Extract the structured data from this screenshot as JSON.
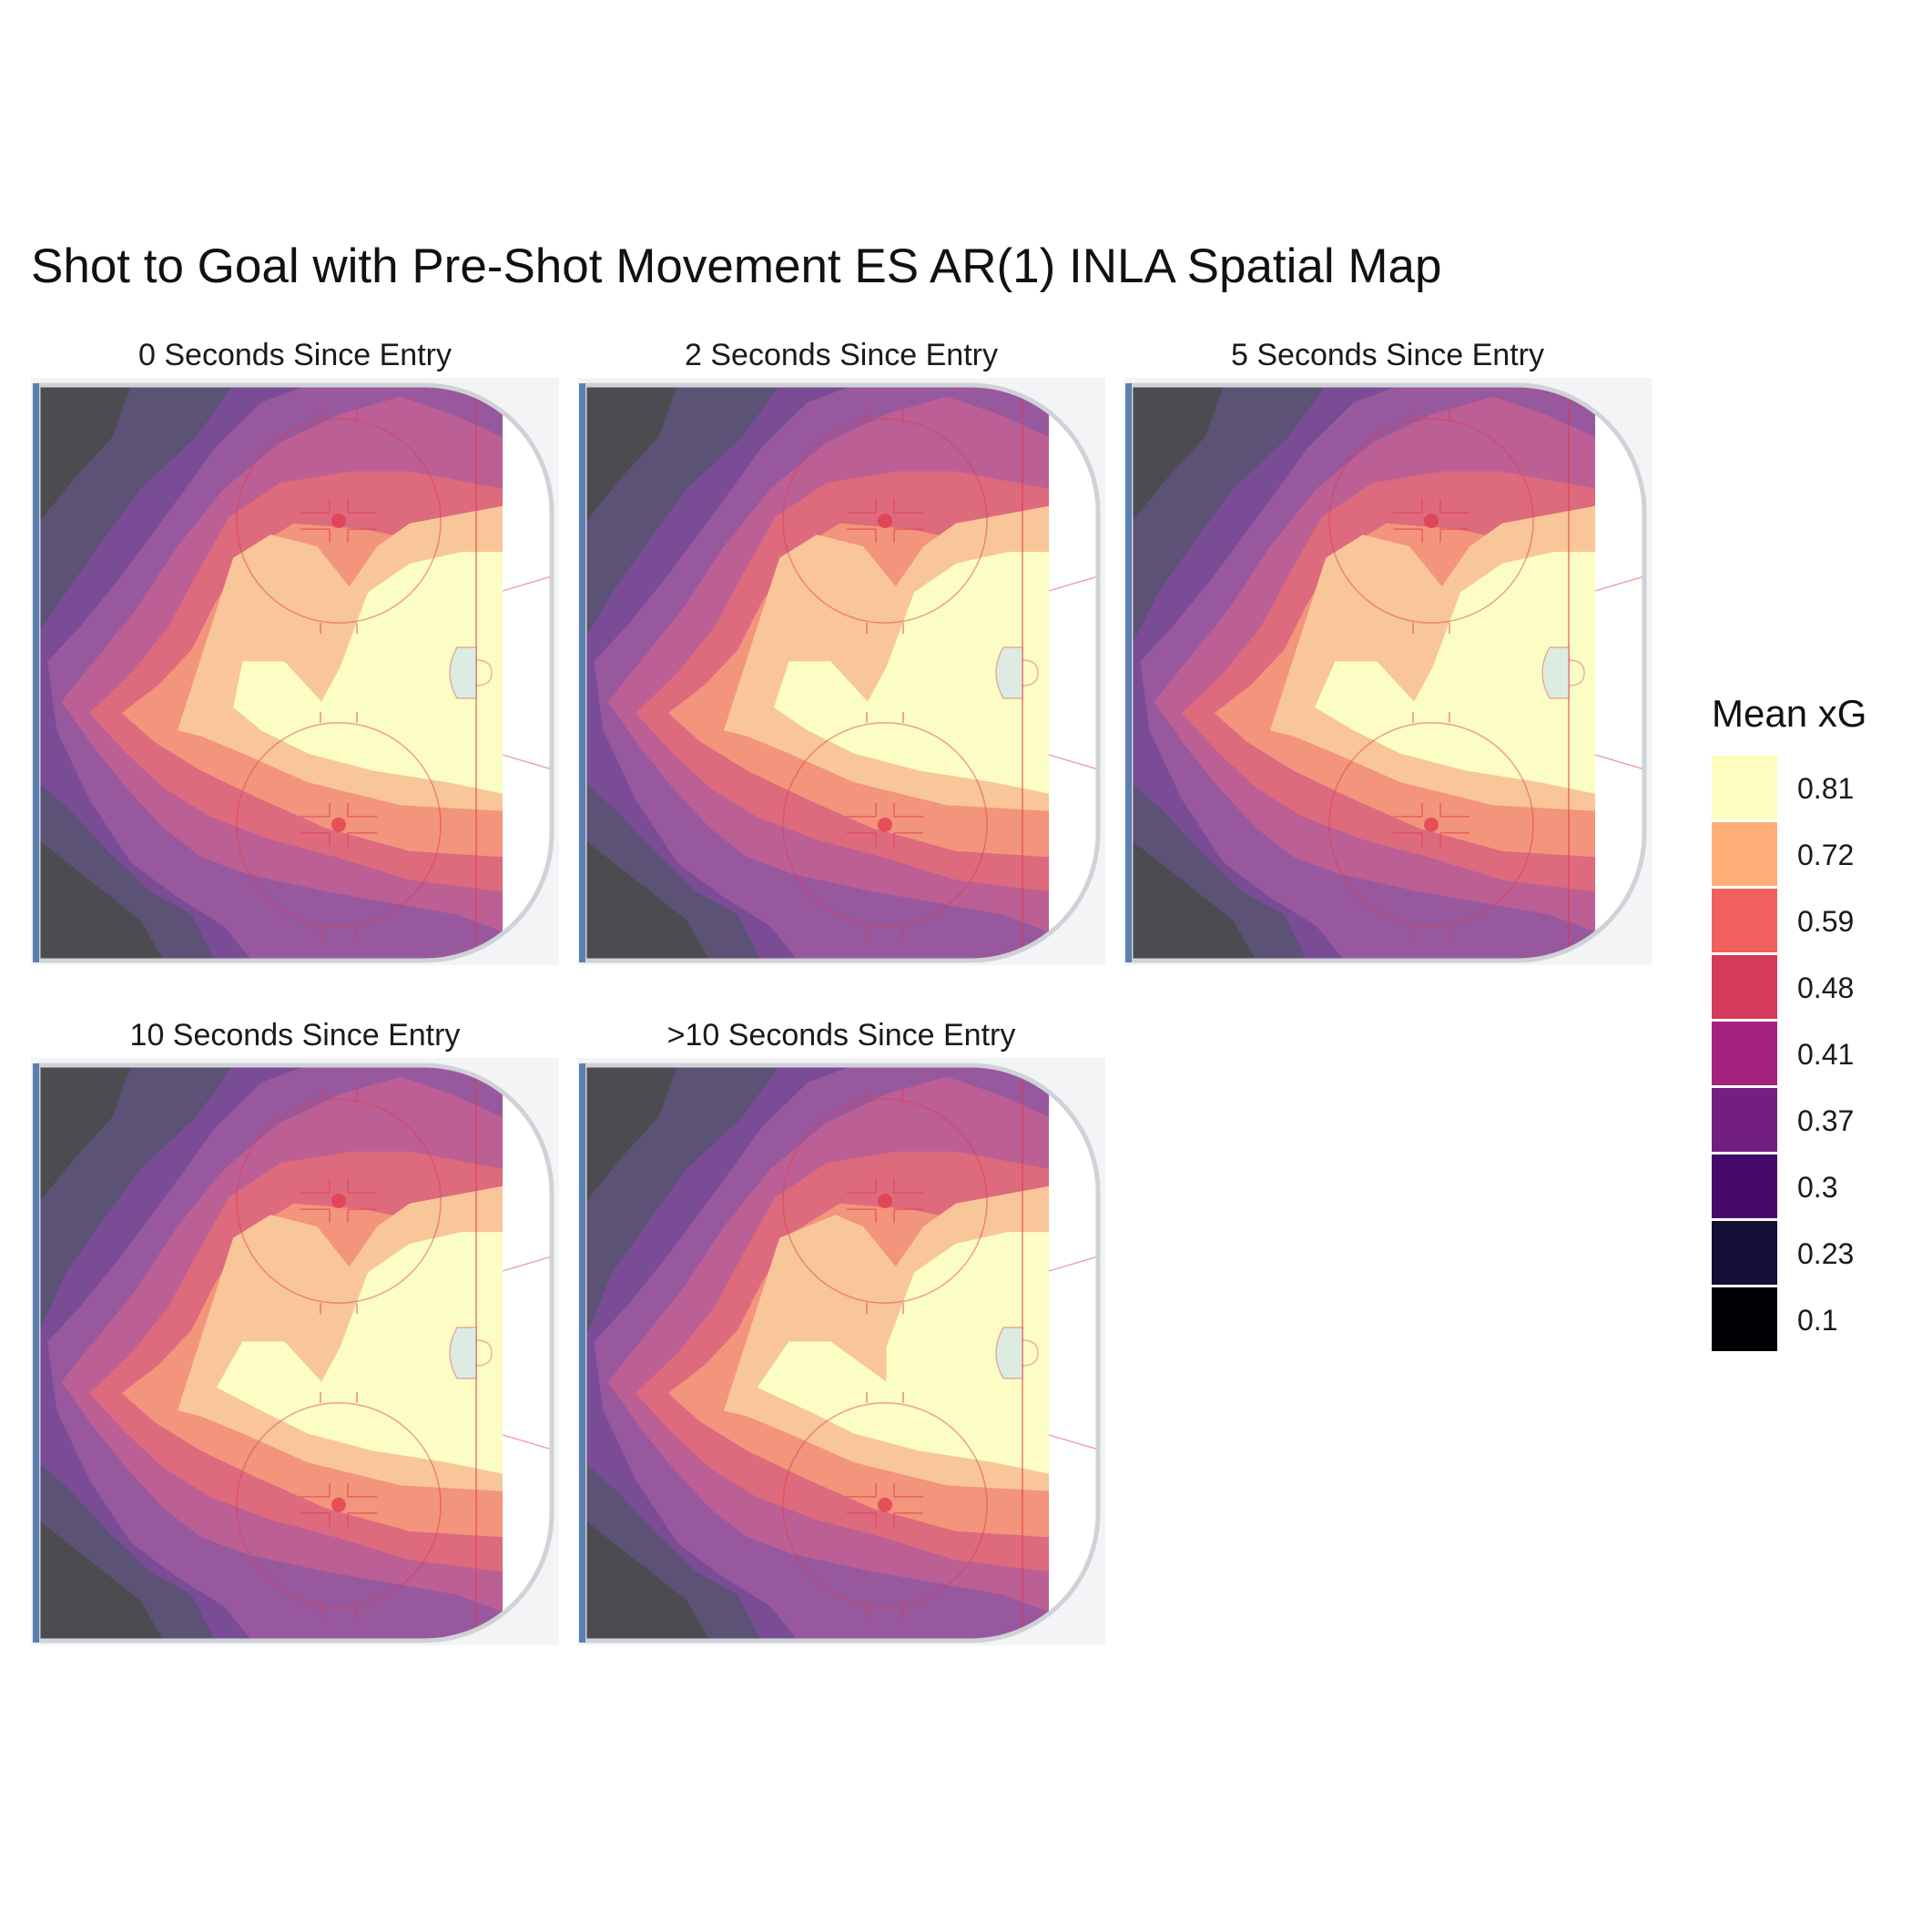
{
  "chart_data": {
    "type": "heatmap",
    "title": "Shot to Goal with Pre-Shot Movement ES AR(1) INLA Spatial Map",
    "xlabel": "",
    "ylabel": "",
    "facets": [
      {
        "label": "0 Seconds Since Entry",
        "variant": 0
      },
      {
        "label": "2 Seconds Since Entry",
        "variant": 1
      },
      {
        "label": "5 Seconds Since Entry",
        "variant": 2
      },
      {
        "label": "10 Seconds Since Entry",
        "variant": 3
      },
      {
        "label": ">10 Seconds Since Entry",
        "variant": 4
      }
    ],
    "legend": {
      "title": "Mean xG",
      "placement": "right",
      "breaks": [
        {
          "label": "0.81",
          "color": "#fcfdbf"
        },
        {
          "label": "0.72",
          "color": "#feb078"
        },
        {
          "label": "0.59",
          "color": "#f1605d"
        },
        {
          "label": "0.48",
          "color": "#d33a5b"
        },
        {
          "label": "0.41",
          "color": "#a3237e"
        },
        {
          "label": "0.37",
          "color": "#721f81"
        },
        {
          "label": "0.3",
          "color": "#460a68"
        },
        {
          "label": "0.23",
          "color": "#150e37"
        },
        {
          "label": "0.1",
          "color": "#000004"
        }
      ]
    },
    "rink_colors": {
      "ice": "#f3f4f6",
      "boards": "#cfd2d6",
      "blue_line": "#5b7fb1",
      "red": "#e03a4c",
      "crease": "#cfe4ef"
    },
    "grid": false
  }
}
